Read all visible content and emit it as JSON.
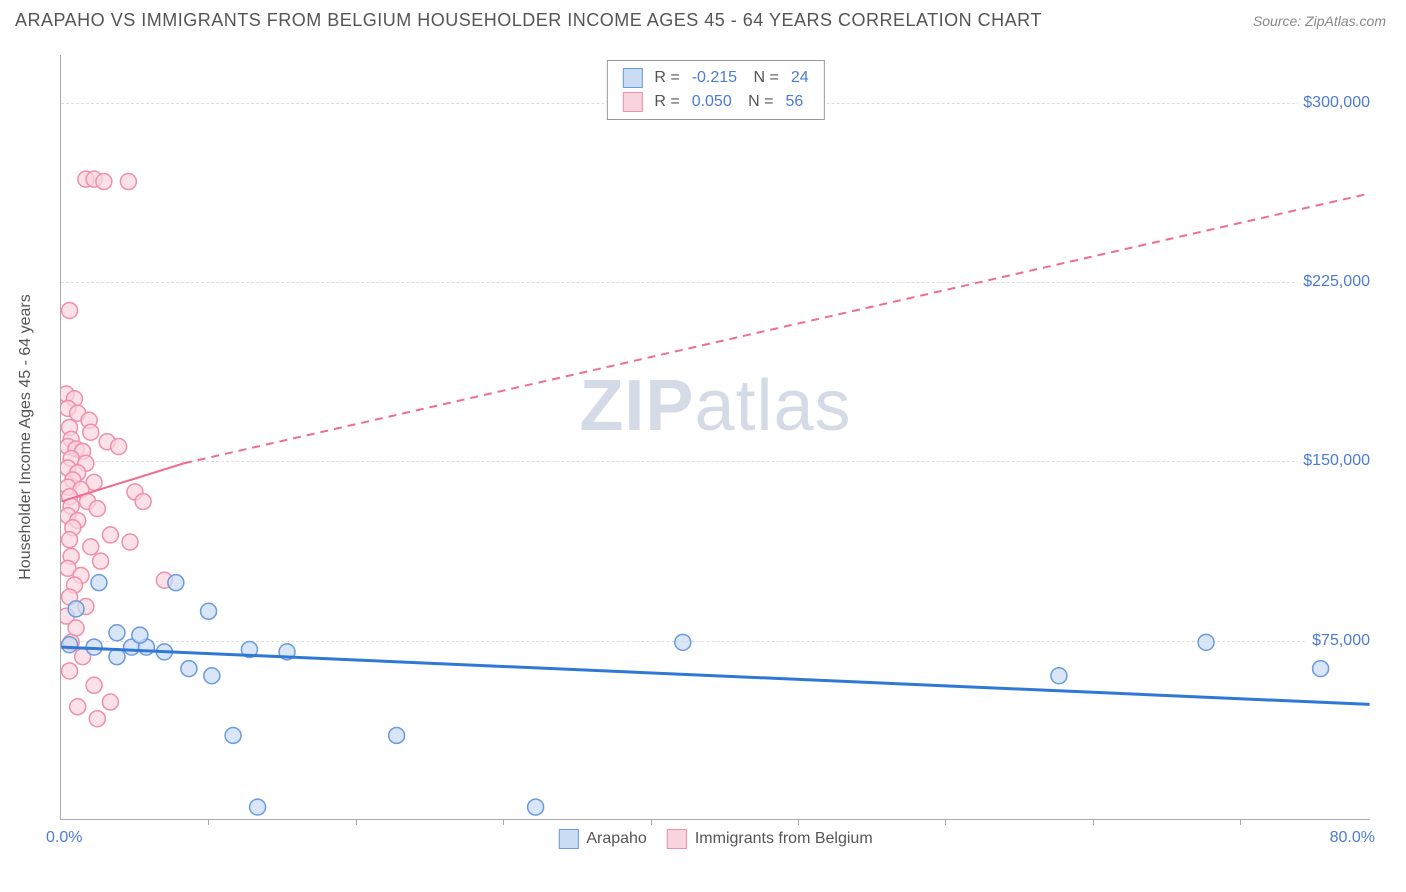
{
  "header": {
    "title": "ARAPAHO VS IMMIGRANTS FROM BELGIUM HOUSEHOLDER INCOME AGES 45 - 64 YEARS CORRELATION CHART",
    "source": "Source: ZipAtlas.com"
  },
  "watermark": {
    "pre": "ZIP",
    "post": "atlas"
  },
  "chart": {
    "type": "scatter-correlation",
    "ylabel": "Householder Income Ages 45 - 64 years",
    "xlim": [
      0,
      80
    ],
    "ylim": [
      0,
      320000
    ],
    "xmin_label": "0.0%",
    "xmax_label": "80.0%",
    "y_ticks": [
      {
        "v": 75000,
        "label": "$75,000"
      },
      {
        "v": 150000,
        "label": "$150,000"
      },
      {
        "v": 225000,
        "label": "$225,000"
      },
      {
        "v": 300000,
        "label": "$300,000"
      }
    ],
    "x_tick_positions": [
      9,
      18,
      27,
      36,
      45,
      54,
      63,
      72
    ],
    "grid_color": "#dddddd",
    "background_color": "#ffffff",
    "marker_radius": 8,
    "marker_stroke_width": 1.5,
    "line_width_blue": 3,
    "line_width_pink": 2,
    "series": {
      "blue": {
        "name": "Arapaho",
        "fill": "#c9dcf4",
        "stroke": "#6a9ae0",
        "line": "#2f78d6",
        "R": "-0.215",
        "N": "24",
        "trend_solid": {
          "x1": 0,
          "y1": 72000,
          "x2": 80,
          "y2": 48000
        },
        "points": [
          {
            "x": 0.9,
            "y": 88000
          },
          {
            "x": 0.5,
            "y": 73000
          },
          {
            "x": 2.3,
            "y": 99000
          },
          {
            "x": 2.0,
            "y": 72000
          },
          {
            "x": 3.4,
            "y": 78000
          },
          {
            "x": 3.4,
            "y": 68000
          },
          {
            "x": 4.3,
            "y": 72000
          },
          {
            "x": 5.2,
            "y": 72000
          },
          {
            "x": 6.3,
            "y": 70000
          },
          {
            "x": 7.0,
            "y": 99000
          },
          {
            "x": 7.8,
            "y": 63000
          },
          {
            "x": 9.0,
            "y": 87000
          },
          {
            "x": 9.2,
            "y": 60000
          },
          {
            "x": 10.5,
            "y": 35000
          },
          {
            "x": 11.5,
            "y": 71000
          },
          {
            "x": 13.8,
            "y": 70000
          },
          {
            "x": 12.0,
            "y": 5000
          },
          {
            "x": 20.5,
            "y": 35000
          },
          {
            "x": 29.0,
            "y": 5000
          },
          {
            "x": 38.0,
            "y": 74000
          },
          {
            "x": 61.0,
            "y": 60000
          },
          {
            "x": 70.0,
            "y": 74000
          },
          {
            "x": 77.0,
            "y": 63000
          },
          {
            "x": 4.8,
            "y": 77000
          }
        ]
      },
      "pink": {
        "name": "Immigrants from Belgium",
        "fill": "#fbd5de",
        "stroke": "#ef8fa8",
        "line": "#ef6e8f",
        "R": "0.050",
        "N": "56",
        "trend_solid": {
          "x1": 0,
          "y1": 133000,
          "x2": 7.5,
          "y2": 149000
        },
        "trend_dashed": {
          "x1": 7.5,
          "y1": 149000,
          "x2": 80,
          "y2": 262000
        },
        "points": [
          {
            "x": 1.5,
            "y": 268000
          },
          {
            "x": 2.0,
            "y": 268000
          },
          {
            "x": 2.6,
            "y": 267000
          },
          {
            "x": 4.1,
            "y": 267000
          },
          {
            "x": 0.5,
            "y": 213000
          },
          {
            "x": 0.3,
            "y": 178000
          },
          {
            "x": 0.8,
            "y": 176000
          },
          {
            "x": 0.4,
            "y": 172000
          },
          {
            "x": 1.0,
            "y": 170000
          },
          {
            "x": 1.7,
            "y": 167000
          },
          {
            "x": 0.5,
            "y": 164000
          },
          {
            "x": 1.8,
            "y": 162000
          },
          {
            "x": 0.6,
            "y": 159000
          },
          {
            "x": 2.8,
            "y": 158000
          },
          {
            "x": 0.4,
            "y": 156000
          },
          {
            "x": 0.9,
            "y": 155000
          },
          {
            "x": 1.3,
            "y": 154000
          },
          {
            "x": 3.5,
            "y": 156000
          },
          {
            "x": 0.6,
            "y": 151000
          },
          {
            "x": 1.5,
            "y": 149000
          },
          {
            "x": 0.4,
            "y": 147000
          },
          {
            "x": 1.0,
            "y": 145000
          },
          {
            "x": 0.7,
            "y": 142000
          },
          {
            "x": 2.0,
            "y": 141000
          },
          {
            "x": 0.4,
            "y": 139000
          },
          {
            "x": 1.2,
            "y": 138000
          },
          {
            "x": 4.5,
            "y": 137000
          },
          {
            "x": 0.5,
            "y": 135000
          },
          {
            "x": 1.6,
            "y": 133000
          },
          {
            "x": 0.6,
            "y": 131000
          },
          {
            "x": 2.2,
            "y": 130000
          },
          {
            "x": 5.0,
            "y": 133000
          },
          {
            "x": 0.4,
            "y": 127000
          },
          {
            "x": 1.0,
            "y": 125000
          },
          {
            "x": 0.7,
            "y": 122000
          },
          {
            "x": 3.0,
            "y": 119000
          },
          {
            "x": 0.5,
            "y": 117000
          },
          {
            "x": 1.8,
            "y": 114000
          },
          {
            "x": 4.2,
            "y": 116000
          },
          {
            "x": 0.6,
            "y": 110000
          },
          {
            "x": 2.4,
            "y": 108000
          },
          {
            "x": 0.4,
            "y": 105000
          },
          {
            "x": 1.2,
            "y": 102000
          },
          {
            "x": 0.8,
            "y": 98000
          },
          {
            "x": 6.3,
            "y": 100000
          },
          {
            "x": 0.5,
            "y": 93000
          },
          {
            "x": 1.5,
            "y": 89000
          },
          {
            "x": 0.3,
            "y": 85000
          },
          {
            "x": 0.9,
            "y": 80000
          },
          {
            "x": 0.6,
            "y": 74000
          },
          {
            "x": 1.3,
            "y": 68000
          },
          {
            "x": 0.5,
            "y": 62000
          },
          {
            "x": 2.0,
            "y": 56000
          },
          {
            "x": 3.0,
            "y": 49000
          },
          {
            "x": 1.0,
            "y": 47000
          },
          {
            "x": 2.2,
            "y": 42000
          }
        ]
      }
    }
  }
}
